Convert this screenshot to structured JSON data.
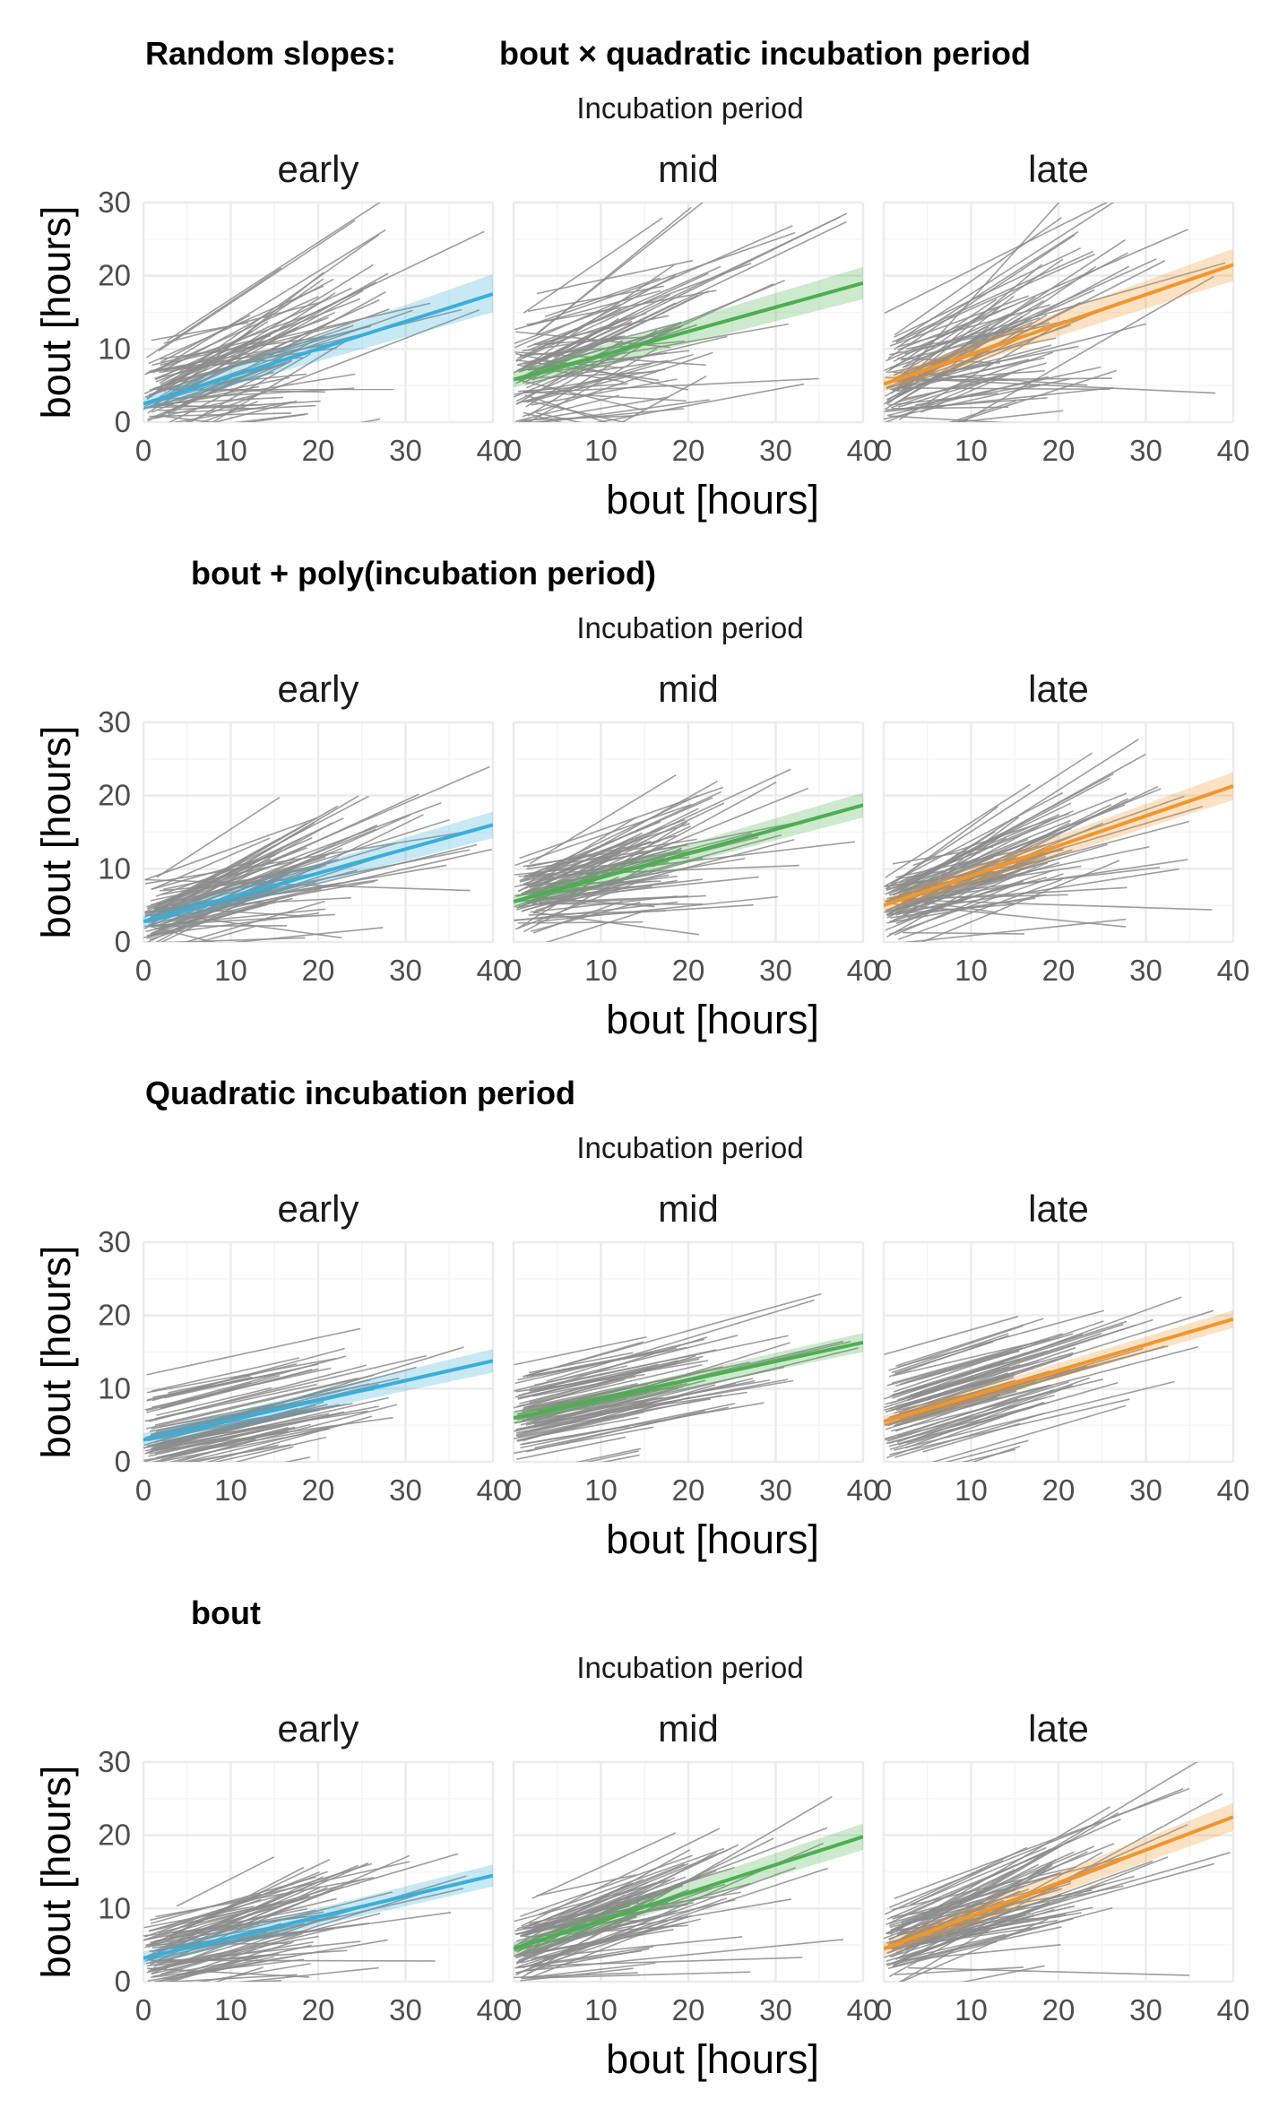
{
  "colors": {
    "early": "#3aaed8",
    "mid": "#4caf50",
    "late": "#f0962e",
    "individual_lines": "#8c8c8c",
    "grid_major": "#ebebeb",
    "grid_minor": "#f5f5f5"
  },
  "chart_data": [
    {
      "type": "line",
      "title": "Random slopes:",
      "subtitle": "bout × quadratic incubation period",
      "facet_header": "Incubation period",
      "xlabel": "bout [hours]",
      "ylabel": "bout [hours]",
      "xlim": [
        0,
        40
      ],
      "ylim": [
        0,
        30
      ],
      "xticks": [
        0,
        10,
        20,
        30,
        40
      ],
      "yticks": [
        0,
        10,
        20,
        30
      ],
      "grid": true,
      "panels": [
        {
          "label": "early",
          "fit": {
            "x": [
              0,
              40
            ],
            "y": [
              2.5,
              17.5
            ]
          },
          "ribbon": {
            "x": [
              0,
              40
            ],
            "lower": [
              1.6,
              15.0
            ],
            "upper": [
              3.4,
              20.2
            ]
          },
          "individual_lines": "approximate"
        },
        {
          "label": "mid",
          "fit": {
            "x": [
              0,
              40
            ],
            "y": [
              5.8,
              19.0
            ]
          },
          "ribbon": {
            "x": [
              0,
              40
            ],
            "lower": [
              4.7,
              16.8
            ],
            "upper": [
              6.9,
              21.2
            ]
          },
          "individual_lines": "approximate"
        },
        {
          "label": "late",
          "fit": {
            "x": [
              0,
              40
            ],
            "y": [
              5.2,
              21.5
            ]
          },
          "ribbon": {
            "x": [
              0,
              40
            ],
            "lower": [
              4.2,
              19.3
            ],
            "upper": [
              6.2,
              23.7
            ]
          },
          "individual_lines": "approximate"
        }
      ]
    },
    {
      "type": "line",
      "title": "bout + poly(incubation period)",
      "facet_header": "Incubation period",
      "xlabel": "bout [hours]",
      "ylabel": "bout [hours]",
      "xlim": [
        0,
        40
      ],
      "ylim": [
        0,
        30
      ],
      "xticks": [
        0,
        10,
        20,
        30,
        40
      ],
      "yticks": [
        0,
        10,
        20,
        30
      ],
      "grid": true,
      "panels": [
        {
          "label": "early",
          "fit": {
            "x": [
              0,
              40
            ],
            "y": [
              2.8,
              16.0
            ]
          },
          "ribbon": {
            "x": [
              0,
              40
            ],
            "lower": [
              1.9,
              14.2
            ],
            "upper": [
              3.7,
              17.8
            ]
          },
          "individual_lines": "approximate"
        },
        {
          "label": "mid",
          "fit": {
            "x": [
              0,
              40
            ],
            "y": [
              5.5,
              18.7
            ]
          },
          "ribbon": {
            "x": [
              0,
              40
            ],
            "lower": [
              4.6,
              17.0
            ],
            "upper": [
              6.4,
              20.4
            ]
          },
          "individual_lines": "approximate"
        },
        {
          "label": "late",
          "fit": {
            "x": [
              0,
              40
            ],
            "y": [
              5.0,
              21.3
            ]
          },
          "ribbon": {
            "x": [
              0,
              40
            ],
            "lower": [
              4.1,
              19.4
            ],
            "upper": [
              5.9,
              23.2
            ]
          },
          "individual_lines": "approximate"
        }
      ]
    },
    {
      "type": "line",
      "title": "Quadratic incubation period",
      "facet_header": "Incubation period",
      "xlabel": "bout [hours]",
      "ylabel": "bout [hours]",
      "xlim": [
        0,
        40
      ],
      "ylim": [
        0,
        30
      ],
      "xticks": [
        0,
        10,
        20,
        30,
        40
      ],
      "yticks": [
        0,
        10,
        20,
        30
      ],
      "grid": true,
      "panels": [
        {
          "label": "early",
          "fit": {
            "x": [
              0,
              40
            ],
            "y": [
              3.0,
              13.8
            ]
          },
          "ribbon": {
            "x": [
              0,
              40
            ],
            "lower": [
              2.1,
              12.2
            ],
            "upper": [
              3.9,
              15.4
            ]
          },
          "individual_lines": "approximate"
        },
        {
          "label": "mid",
          "fit": {
            "x": [
              0,
              40
            ],
            "y": [
              6.0,
              16.3
            ]
          },
          "ribbon": {
            "x": [
              0,
              40
            ],
            "lower": [
              5.2,
              15.0
            ],
            "upper": [
              6.8,
              17.6
            ]
          },
          "individual_lines": "approximate"
        },
        {
          "label": "late",
          "fit": {
            "x": [
              0,
              40
            ],
            "y": [
              5.5,
              19.5
            ]
          },
          "ribbon": {
            "x": [
              0,
              40
            ],
            "lower": [
              4.7,
              18.3
            ],
            "upper": [
              6.3,
              20.7
            ]
          },
          "individual_lines": "approximate"
        }
      ]
    },
    {
      "type": "line",
      "title": "bout",
      "facet_header": "Incubation period",
      "xlabel": "bout [hours]",
      "ylabel": "bout [hours]",
      "xlim": [
        0,
        40
      ],
      "ylim": [
        0,
        30
      ],
      "xticks": [
        0,
        10,
        20,
        30,
        40
      ],
      "yticks": [
        0,
        10,
        20,
        30
      ],
      "grid": true,
      "panels": [
        {
          "label": "early",
          "fit": {
            "x": [
              0,
              40
            ],
            "y": [
              3.2,
              14.5
            ]
          },
          "ribbon": {
            "x": [
              0,
              40
            ],
            "lower": [
              2.3,
              13.0
            ],
            "upper": [
              4.1,
              16.0
            ]
          },
          "individual_lines": "approximate"
        },
        {
          "label": "mid",
          "fit": {
            "x": [
              0,
              40
            ],
            "y": [
              4.5,
              19.8
            ]
          },
          "ribbon": {
            "x": [
              0,
              40
            ],
            "lower": [
              3.6,
              18.0
            ],
            "upper": [
              5.4,
              21.6
            ]
          },
          "individual_lines": "approximate"
        },
        {
          "label": "late",
          "fit": {
            "x": [
              0,
              40
            ],
            "y": [
              4.5,
              22.5
            ]
          },
          "ribbon": {
            "x": [
              0,
              40
            ],
            "lower": [
              3.6,
              20.6
            ],
            "upper": [
              5.4,
              24.4
            ]
          },
          "individual_lines": "approximate"
        }
      ]
    }
  ]
}
